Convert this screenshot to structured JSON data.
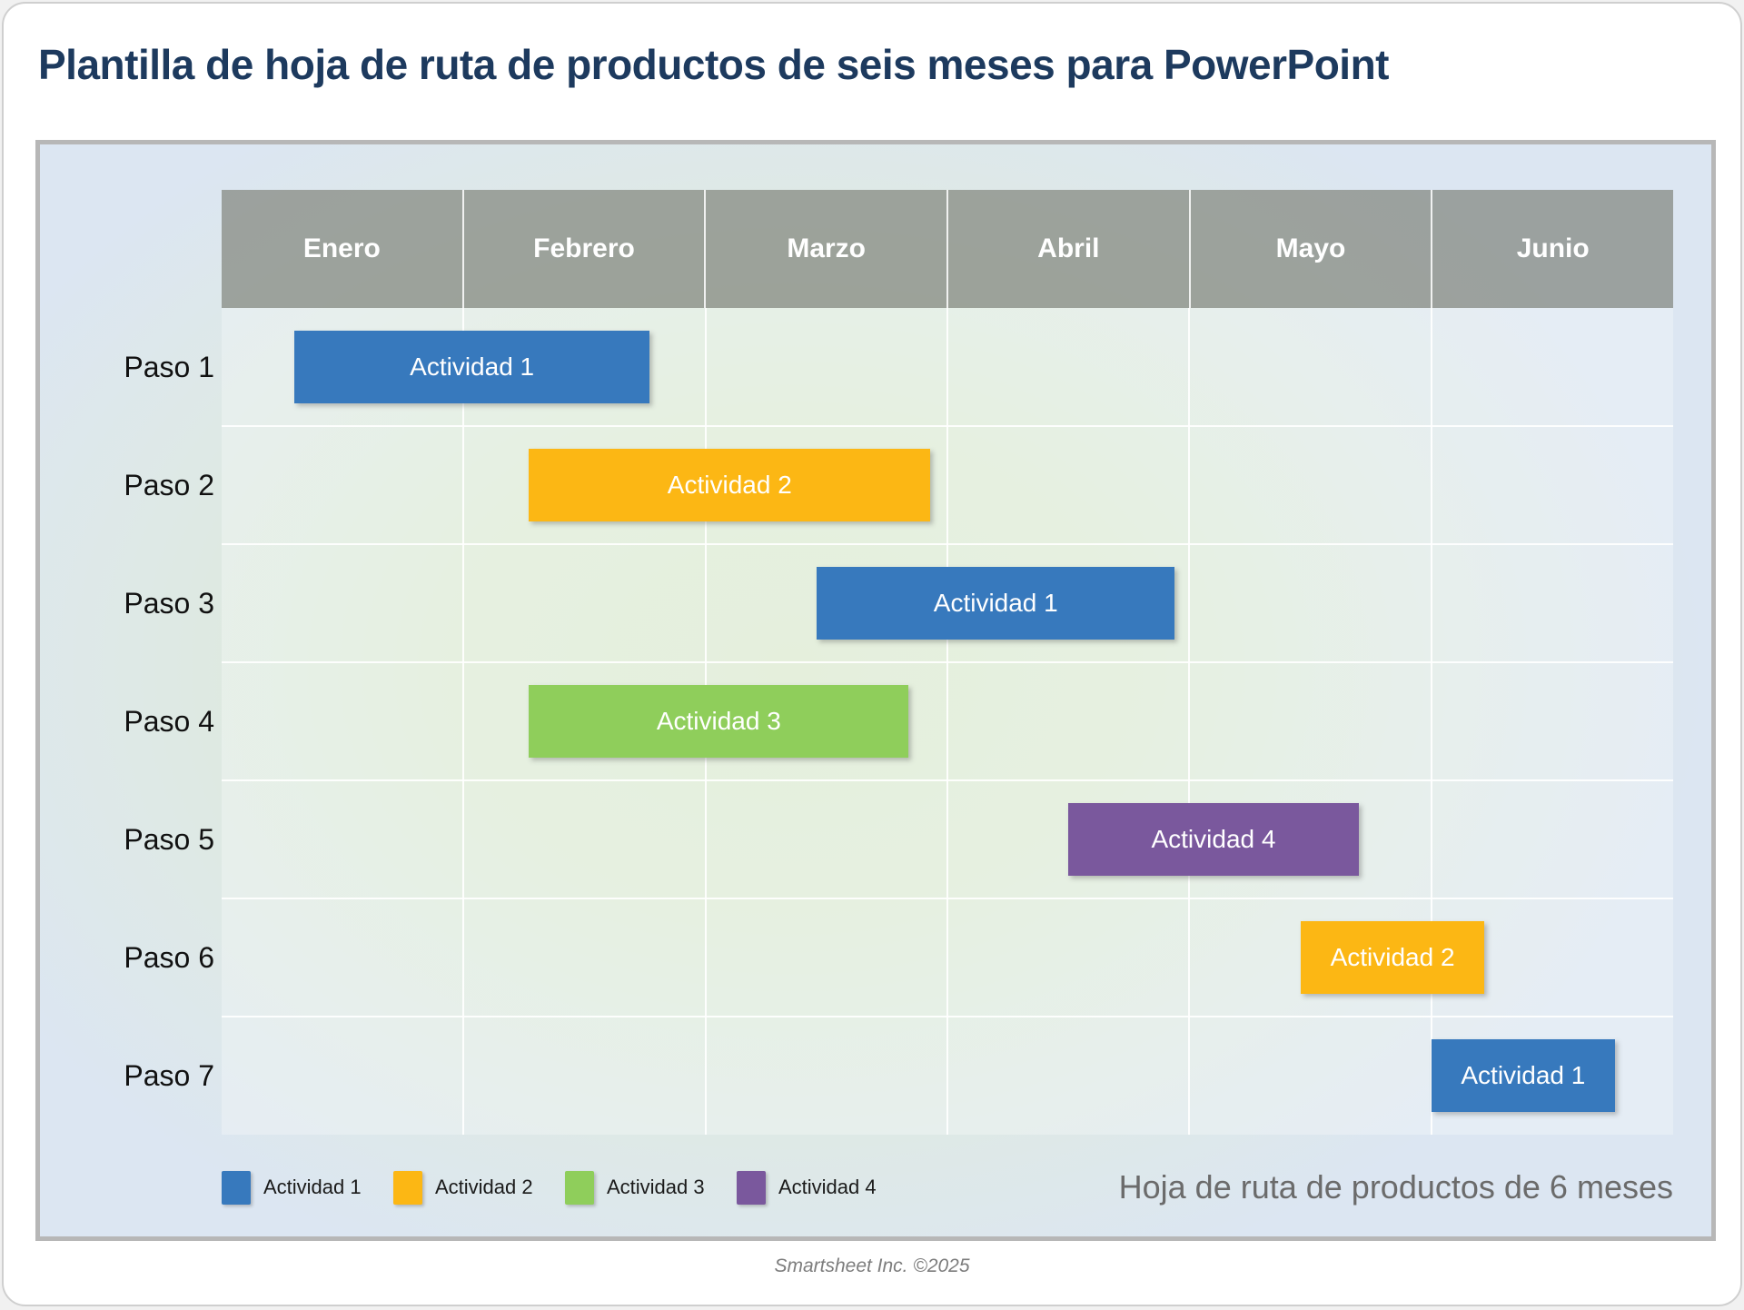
{
  "title": "Plantilla de hoja de ruta de productos de seis meses para PowerPoint",
  "footer": "Smartsheet Inc. ©2025",
  "chart_data": {
    "type": "bar",
    "subtype": "gantt-roadmap",
    "title": "Hoja de ruta de productos de 6 meses",
    "x_axis": {
      "categories": [
        "Enero",
        "Febrero",
        "Marzo",
        "Abril",
        "Mayo",
        "Junio"
      ],
      "min": 0,
      "max": 6,
      "unit": "months"
    },
    "y_axis": {
      "categories": [
        "Paso 1",
        "Paso 2",
        "Paso 3",
        "Paso 4",
        "Paso 5",
        "Paso 6",
        "Paso 7"
      ]
    },
    "grid": true,
    "legend_position": "bottom-left",
    "activities": [
      {
        "name": "Actividad 1",
        "color": "#3779bd"
      },
      {
        "name": "Actividad 2",
        "color": "#fcb714"
      },
      {
        "name": "Actividad 3",
        "color": "#8fce5b"
      },
      {
        "name": "Actividad 4",
        "color": "#7a589d"
      }
    ],
    "bars": [
      {
        "row": "Paso 1",
        "activity": "Actividad 1",
        "start_month": 0.3,
        "end_month": 1.77
      },
      {
        "row": "Paso 2",
        "activity": "Actividad 2",
        "start_month": 1.27,
        "end_month": 2.93
      },
      {
        "row": "Paso 3",
        "activity": "Actividad 1",
        "start_month": 2.46,
        "end_month": 3.94
      },
      {
        "row": "Paso 4",
        "activity": "Actividad 3",
        "start_month": 1.27,
        "end_month": 2.84
      },
      {
        "row": "Paso 5",
        "activity": "Actividad 4",
        "start_month": 3.5,
        "end_month": 4.7
      },
      {
        "row": "Paso 6",
        "activity": "Actividad 2",
        "start_month": 4.46,
        "end_month": 5.22
      },
      {
        "row": "Paso 7",
        "activity": "Actividad 1",
        "start_month": 5.0,
        "end_month": 5.76
      }
    ],
    "legend": [
      "Actividad 1",
      "Actividad 2",
      "Actividad 3",
      "Actividad 4"
    ]
  },
  "colors": {
    "title_text": "#1d3a5e",
    "header_bg": "#a6a9a3",
    "header_text": "#ffffff",
    "row_label_text": "#111111",
    "bar_text": "#ffffff",
    "legend_text": "#1a1a1a",
    "chart_caption_text": "#6b6b6b",
    "footer_text": "#7d7d7d",
    "slide_border": "#b7b7b7"
  }
}
